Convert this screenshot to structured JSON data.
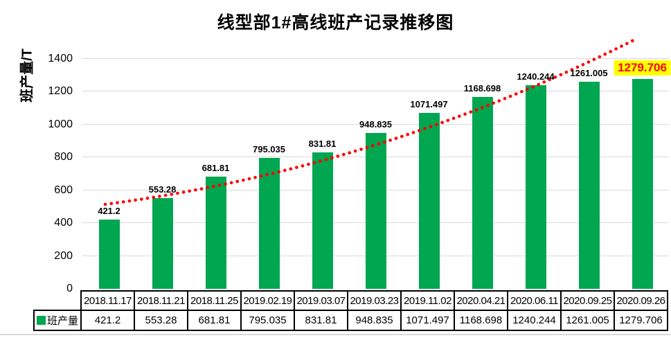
{
  "title": "线型部1#高线班产记录推移图",
  "y_axis": {
    "label": "班产量/T",
    "ticks": [
      0,
      200,
      400,
      600,
      800,
      1000,
      1200,
      1400
    ]
  },
  "legend": {
    "series_label": "班产量"
  },
  "colors": {
    "bar": "#00A650",
    "trendline": "#FF0000",
    "gridline": "#d9d9d9",
    "highlight_bg": "#FFFF00",
    "highlight_text": "#FF0000"
  },
  "chart_data": {
    "type": "bar",
    "title": "线型部1#高线班产记录推移图",
    "xlabel": "",
    "ylabel": "班产量/T",
    "categories": [
      "2018.11.17",
      "2018.11.21",
      "2018.11.25",
      "2019.02.19",
      "2019.03.07",
      "2019.03.23",
      "2019.11.02",
      "2020.04.21",
      "2020.06.11",
      "2020.09.25",
      "2020.09.26"
    ],
    "series": [
      {
        "name": "班产量",
        "values": [
          421.2,
          553.28,
          681.81,
          795.035,
          831.81,
          948.835,
          1071.497,
          1168.698,
          1240.244,
          1261.005,
          1279.706
        ]
      }
    ],
    "data_labels": [
      "421.2",
      "553.28",
      "681.81",
      "795.035",
      "831.81",
      "948.835",
      "1071.497",
      "1168.698",
      "1240.244",
      "1261.005",
      "1279.706"
    ],
    "highlighted_label": "1279.706",
    "ylim": [
      0,
      1500
    ],
    "y_tick_step": 200,
    "grid": true,
    "bar_color": "#00A650",
    "trendline": {
      "type": "fitted-curve",
      "style": "dotted",
      "color": "#FF0000"
    },
    "legend_position": "table-row-header"
  }
}
